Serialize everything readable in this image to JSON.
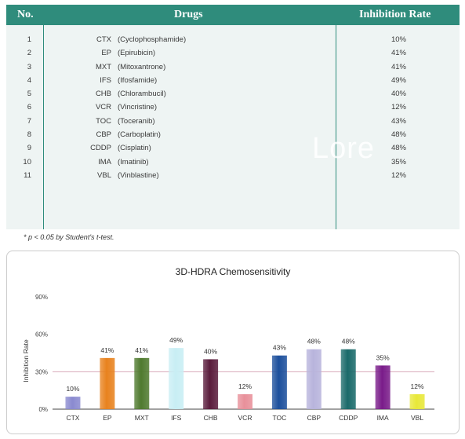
{
  "table": {
    "headers": {
      "no": "No.",
      "drugs": "Drugs",
      "rate": "Inhibition Rate"
    },
    "rows": [
      {
        "no": "1",
        "abbr": "CTX",
        "name": "(Cyclophosphamide)",
        "rate": "10%"
      },
      {
        "no": "2",
        "abbr": "EP",
        "name": "(Epirubicin)",
        "rate": "41%"
      },
      {
        "no": "3",
        "abbr": "MXT",
        "name": "(Mitoxantrone)",
        "rate": "41%"
      },
      {
        "no": "4",
        "abbr": "IFS",
        "name": "(Ifosfamide)",
        "rate": "49%"
      },
      {
        "no": "5",
        "abbr": "CHB",
        "name": "(Chlorambucil)",
        "rate": "40%"
      },
      {
        "no": "6",
        "abbr": "VCR",
        "name": "(Vincristine)",
        "rate": "12%"
      },
      {
        "no": "7",
        "abbr": "TOC",
        "name": "(Toceranib)",
        "rate": "43%"
      },
      {
        "no": "8",
        "abbr": "CBP",
        "name": "(Carboplatin)",
        "rate": "48%"
      },
      {
        "no": "9",
        "abbr": "CDDP",
        "name": "(Cisplatin)",
        "rate": "48%"
      },
      {
        "no": "10",
        "abbr": "IMA",
        "name": "(Imatinib)",
        "rate": "35%"
      },
      {
        "no": "11",
        "abbr": "VBL",
        "name": "(Vinblastine)",
        "rate": "12%"
      }
    ]
  },
  "watermark": "Lore",
  "footnote": "* p < 0.05 by Student's t-test.",
  "chart_data": {
    "type": "bar",
    "title": "3D-HDRA Chemosensitivity",
    "ylabel": "Inhibition Rate",
    "xlabel": "",
    "categories": [
      "CTX",
      "EP",
      "MXT",
      "IFS",
      "CHB",
      "VCR",
      "TOC",
      "CBP",
      "CDDP",
      "IMA",
      "VBL"
    ],
    "values": [
      10,
      41,
      41,
      49,
      40,
      12,
      43,
      48,
      48,
      35,
      12
    ],
    "value_labels": [
      "10%",
      "41%",
      "41%",
      "49%",
      "40%",
      "12%",
      "43%",
      "48%",
      "48%",
      "35%",
      "12%"
    ],
    "yticks": [
      0,
      30,
      60,
      90
    ],
    "ytick_labels": [
      "0%",
      "30%",
      "60%",
      "90%"
    ],
    "ylim": [
      0,
      90
    ],
    "reference_line": 30,
    "grid": false,
    "legend": "none",
    "colors": [
      "#8a8ad0",
      "#e8821e",
      "#4f7a2e",
      "#c8eef4",
      "#5a1c3c",
      "#e8909a",
      "#1c4f9c",
      "#b8b4dc",
      "#1a6a6a",
      "#7a1c8a",
      "#e8e838"
    ],
    "reference_line_color": "#d8a8b8"
  }
}
